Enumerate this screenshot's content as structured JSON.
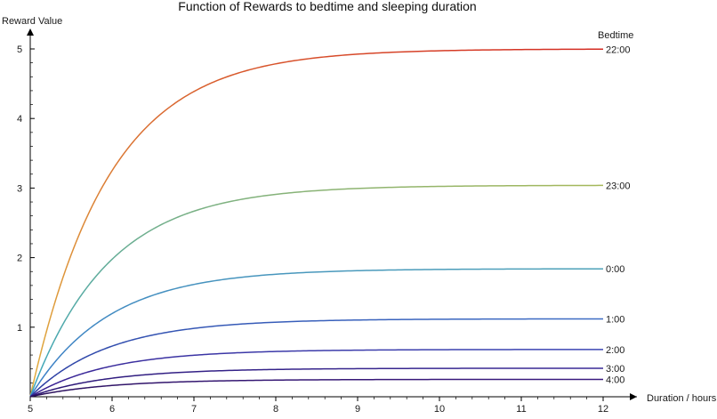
{
  "chart_data": {
    "type": "line",
    "title": "Function of Rewards to bedtime and sleeping duration",
    "xlabel": "Duration / hours",
    "ylabel": "Reward Value",
    "xlim": [
      5,
      12
    ],
    "ylim": [
      0,
      5.3
    ],
    "xticks": [
      5,
      6,
      7,
      8,
      9,
      10,
      11,
      12
    ],
    "yticks": [
      1,
      2,
      3,
      4,
      5
    ],
    "legend_title": "Bedtime",
    "grid": false,
    "series": [
      {
        "name": "22:00",
        "asymptote": 5.0,
        "rate": 1.05,
        "color_start": "#e0b040",
        "color_end": "#d42a22"
      },
      {
        "name": "23:00",
        "asymptote": 3.04,
        "rate": 1.05,
        "color_start": "#3aa6c0",
        "color_end": "#a6b85a"
      },
      {
        "name": "0:00",
        "asymptote": 1.84,
        "rate": 1.05,
        "color_start": "#3a7cc8",
        "color_end": "#4ea2b8"
      },
      {
        "name": "1:00",
        "asymptote": 1.12,
        "rate": 1.05,
        "color_start": "#2c3aa0",
        "color_end": "#3c6cc4"
      },
      {
        "name": "2:00",
        "asymptote": 0.68,
        "rate": 1.05,
        "color_start": "#3a1c8e",
        "color_end": "#3c46b4"
      },
      {
        "name": "3:00",
        "asymptote": 0.41,
        "rate": 1.05,
        "color_start": "#2a1470",
        "color_end": "#3a2a96"
      },
      {
        "name": "4:00",
        "asymptote": 0.25,
        "rate": 1.05,
        "color_start": "#2a1058",
        "color_end": "#3a1a80"
      }
    ]
  }
}
